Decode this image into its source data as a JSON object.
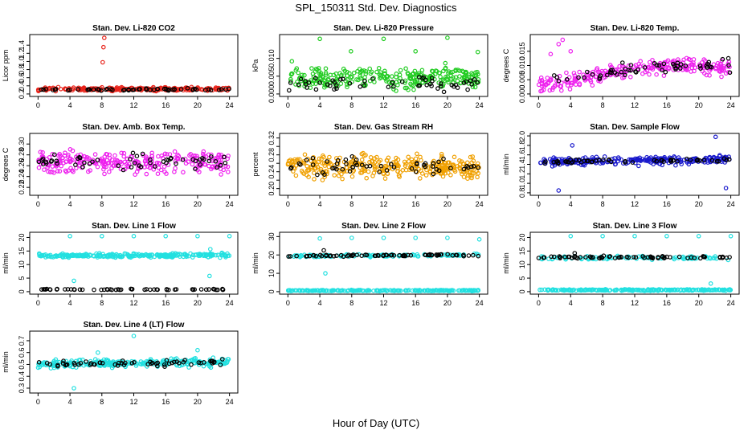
{
  "figure": {
    "title": "SPL_150311  Std. Dev. Diagnostics",
    "xlabel": "Hour of Day (UTC)"
  },
  "chart_data": [
    {
      "type": "scatter",
      "title": "Stan. Dev. Li-820 CO2",
      "ylabel": "Licor ppm",
      "xlim": [
        0,
        24
      ],
      "ylim": [
        0.2,
        1.6
      ],
      "xticks": [
        0,
        4,
        8,
        12,
        16,
        20,
        24
      ],
      "yticks": [
        0.2,
        0.4,
        0.6,
        0.8,
        1.0,
        1.2,
        1.4
      ],
      "ytick_labels": [
        "0.2",
        "0.4",
        "0.6",
        "0.8",
        "1.0",
        "1.2",
        "1.4"
      ],
      "series": [
        {
          "color": "#e8231a",
          "kind": "band",
          "n": 230,
          "center": [
            [
              0,
              0.32
            ],
            [
              24,
              0.32
            ]
          ],
          "spread": 0.06,
          "outliers": [
            [
              8.3,
              1.58
            ],
            [
              8.2,
              1.35
            ],
            [
              8.1,
              0.98
            ]
          ]
        },
        {
          "color": "#000000",
          "kind": "band",
          "n": 55,
          "center": [
            [
              0,
              0.31
            ],
            [
              24,
              0.31
            ]
          ],
          "spread": 0.04
        }
      ]
    },
    {
      "type": "scatter",
      "title": "Stan. Dev. Li-820 Pressure",
      "ylabel": "kPa",
      "xlim": [
        0,
        24
      ],
      "ylim": [
        0,
        0.016
      ],
      "xticks": [
        0,
        4,
        8,
        12,
        16,
        20,
        24
      ],
      "yticks": [
        0,
        0.005,
        0.01
      ],
      "ytick_labels": [
        "0.000",
        "0.005",
        "0.010"
      ],
      "series": [
        {
          "color": "#22cc22",
          "kind": "band",
          "n": 280,
          "center": [
            [
              0,
              0.0045
            ],
            [
              24,
              0.0045
            ]
          ],
          "spread": 0.0045,
          "outliers": [
            [
              4,
              0.0155
            ],
            [
              7.9,
              0.012
            ],
            [
              12,
              0.0155
            ],
            [
              16,
              0.012
            ],
            [
              20,
              0.0158
            ],
            [
              23.8,
              0.0118
            ],
            [
              0.5,
              0.0092
            ]
          ]
        },
        {
          "color": "#000000",
          "kind": "band",
          "n": 55,
          "center": [
            [
              0,
              0.003
            ],
            [
              24,
              0.003
            ]
          ],
          "spread": 0.003
        }
      ]
    },
    {
      "type": "scatter",
      "title": "Stan. Dev. Li-820 Temp.",
      "ylabel": "degrees C",
      "xlim": [
        0,
        24
      ],
      "ylim": [
        0,
        0.02
      ],
      "xticks": [
        0,
        4,
        8,
        12,
        16,
        20,
        24
      ],
      "yticks": [
        0,
        0.005,
        0.01,
        0.015
      ],
      "ytick_labels": [
        "0.000",
        "0.005",
        "0.010",
        "0.015"
      ],
      "series": [
        {
          "color": "#ee22ee",
          "kind": "band",
          "n": 260,
          "center": [
            [
              0,
              0.003
            ],
            [
              5,
              0.005
            ],
            [
              10,
              0.008
            ],
            [
              16,
              0.01
            ],
            [
              24,
              0.009
            ]
          ],
          "spread": 0.004,
          "outliers": [
            [
              3,
              0.019
            ],
            [
              2.5,
              0.0175
            ],
            [
              1.5,
              0.014
            ],
            [
              4,
              0.015
            ]
          ]
        },
        {
          "color": "#000000",
          "kind": "band",
          "n": 55,
          "center": [
            [
              0,
              0.004
            ],
            [
              12,
              0.009
            ],
            [
              24,
              0.01
            ]
          ],
          "spread": 0.003,
          "outliers": [
            [
              23.7,
              0.0125
            ]
          ]
        }
      ]
    },
    {
      "type": "scatter",
      "title": "Stan. Dev. Amb. Box Temp.",
      "ylabel": "degrees C",
      "xlim": [
        0,
        24
      ],
      "ylim": [
        0.21,
        0.315
      ],
      "xticks": [
        0,
        4,
        8,
        12,
        16,
        20,
        24
      ],
      "yticks": [
        0.22,
        0.24,
        0.26,
        0.28,
        0.3
      ],
      "ytick_labels": [
        "0.22",
        "0.24",
        "0.26",
        "0.28",
        "0.30"
      ],
      "series": [
        {
          "color": "#ee22ee",
          "kind": "band",
          "n": 270,
          "center": [
            [
              0,
              0.265
            ],
            [
              24,
              0.268
            ]
          ],
          "spread": 0.03
        },
        {
          "color": "#000000",
          "kind": "band",
          "n": 55,
          "center": [
            [
              0,
              0.268
            ],
            [
              24,
              0.27
            ]
          ],
          "spread": 0.02
        }
      ]
    },
    {
      "type": "scatter",
      "title": "Stan. Dev. Gas Stream RH",
      "ylabel": "percent",
      "xlim": [
        0,
        24
      ],
      "ylim": [
        0.19,
        0.325
      ],
      "xticks": [
        0,
        4,
        8,
        12,
        16,
        20,
        24
      ],
      "yticks": [
        0.2,
        0.22,
        0.24,
        0.26,
        0.28,
        0.3,
        0.32
      ],
      "ytick_labels": [
        "0.20",
        "",
        "0.24",
        "",
        "0.28",
        "",
        "0.32"
      ],
      "series": [
        {
          "color": "#f0a000",
          "kind": "band",
          "n": 330,
          "center": [
            [
              0,
              0.255
            ],
            [
              24,
              0.25
            ]
          ],
          "spread": 0.04
        },
        {
          "color": "#000000",
          "kind": "band",
          "n": 55,
          "center": [
            [
              0,
              0.255
            ],
            [
              24,
              0.252
            ]
          ],
          "spread": 0.03
        }
      ]
    },
    {
      "type": "scatter",
      "title": "Stan. Dev. Sample Flow",
      "ylabel": "ml/min",
      "xlim": [
        0,
        24
      ],
      "ylim": [
        0.8,
        2.0
      ],
      "xticks": [
        0,
        4,
        8,
        12,
        16,
        20,
        24
      ],
      "yticks": [
        0.8,
        1.0,
        1.2,
        1.4,
        1.6,
        1.8,
        2.0
      ],
      "ytick_labels": [
        "0.8",
        "1.0",
        "1.2",
        "1.4",
        "1.6",
        "1.8",
        "2.0"
      ],
      "series": [
        {
          "color": "#1a1acc",
          "kind": "band",
          "n": 270,
          "center": [
            [
              0,
              1.45
            ],
            [
              24,
              1.5
            ]
          ],
          "spread": 0.12,
          "outliers": [
            [
              2.5,
              0.85
            ],
            [
              23.4,
              0.9
            ],
            [
              22.1,
              1.98
            ],
            [
              4.2,
              1.8
            ]
          ]
        },
        {
          "color": "#000000",
          "kind": "band",
          "n": 55,
          "center": [
            [
              0,
              1.45
            ],
            [
              24,
              1.5
            ]
          ],
          "spread": 0.06
        }
      ]
    },
    {
      "type": "scatter",
      "title": "Stan. Dev. Line 1 Flow",
      "ylabel": "ml/min",
      "xlim": [
        0,
        24
      ],
      "ylim": [
        0,
        21
      ],
      "xticks": [
        0,
        4,
        8,
        12,
        16,
        20,
        24
      ],
      "yticks": [
        0,
        5,
        10,
        15,
        20
      ],
      "ytick_labels": [
        "0",
        "5",
        "10",
        "15",
        "20"
      ],
      "series": [
        {
          "color": "#22e0e0",
          "kind": "band",
          "n": 260,
          "center": [
            [
              0,
              13.2
            ],
            [
              24,
              13.5
            ]
          ],
          "spread": 1.0,
          "outliers": [
            [
              4,
              20.5
            ],
            [
              8,
              20.5
            ],
            [
              12,
              20.5
            ],
            [
              16,
              20.5
            ],
            [
              20,
              20.5
            ],
            [
              24,
              20.5
            ],
            [
              4.5,
              4
            ],
            [
              21.5,
              5.8
            ],
            [
              21.6,
              15.7
            ]
          ]
        },
        {
          "color": "#000000",
          "kind": "band",
          "n": 55,
          "center": [
            [
              0,
              0.8
            ],
            [
              24,
              0.8
            ]
          ],
          "spread": 0.3
        }
      ]
    },
    {
      "type": "scatter",
      "title": "Stan. Dev. Line 2 Flow",
      "ylabel": "ml/min",
      "xlim": [
        0,
        24
      ],
      "ylim": [
        0,
        31
      ],
      "xticks": [
        0,
        4,
        8,
        12,
        16,
        20,
        24
      ],
      "yticks": [
        0,
        10,
        20,
        30
      ],
      "ytick_labels": [
        "0",
        "10",
        "20",
        "30"
      ],
      "series": [
        {
          "color": "#22e0e0",
          "kind": "band",
          "n": 220,
          "center": [
            [
              0,
              0.6
            ],
            [
              24,
              0.6
            ]
          ],
          "spread": 0.4,
          "outliers": [
            [
              4,
              29
            ],
            [
              8,
              29.3
            ],
            [
              12,
              29.3
            ],
            [
              16,
              29.3
            ],
            [
              20,
              29.3
            ],
            [
              24,
              28.5
            ],
            [
              4.7,
              10
            ]
          ]
        },
        {
          "color": "#22e0e0",
          "kind": "band",
          "n": 120,
          "center": [
            [
              0,
              19.5
            ],
            [
              24,
              20
            ]
          ],
          "spread": 1.0
        },
        {
          "color": "#000000",
          "kind": "band",
          "n": 70,
          "center": [
            [
              0,
              19.5
            ],
            [
              24,
              20
            ]
          ],
          "spread": 0.8,
          "outliers": [
            [
              4.5,
              22.5
            ]
          ]
        }
      ]
    },
    {
      "type": "scatter",
      "title": "Stan. Dev. Line 3 Flow",
      "ylabel": "ml/min",
      "xlim": [
        0,
        24
      ],
      "ylim": [
        0,
        21
      ],
      "xticks": [
        0,
        4,
        8,
        12,
        16,
        20,
        24
      ],
      "yticks": [
        0,
        5,
        10,
        15,
        20
      ],
      "ytick_labels": [
        "0",
        "5",
        "10",
        "15",
        "20"
      ],
      "series": [
        {
          "color": "#22e0e0",
          "kind": "band",
          "n": 220,
          "center": [
            [
              0,
              0.6
            ],
            [
              24,
              0.6
            ]
          ],
          "spread": 0.4,
          "outliers": [
            [
              4,
              20.5
            ],
            [
              8,
              20.5
            ],
            [
              12,
              20.5
            ],
            [
              16,
              20.5
            ],
            [
              20,
              20.5
            ],
            [
              24,
              20.5
            ],
            [
              21.5,
              3
            ]
          ]
        },
        {
          "color": "#22e0e0",
          "kind": "band",
          "n": 100,
          "center": [
            [
              0,
              12.5
            ],
            [
              24,
              12.5
            ]
          ],
          "spread": 1.0
        },
        {
          "color": "#000000",
          "kind": "band",
          "n": 70,
          "center": [
            [
              0,
              12.7
            ],
            [
              24,
              12.7
            ]
          ],
          "spread": 0.6,
          "outliers": [
            [
              4.5,
              14.2
            ]
          ]
        }
      ]
    },
    {
      "type": "scatter",
      "title": "Stan. Dev. Line 4 (LT) Flow",
      "ylabel": "ml/min",
      "xlim": [
        0,
        24
      ],
      "ylim": [
        0.28,
        0.76
      ],
      "xticks": [
        0,
        4,
        8,
        12,
        16,
        20,
        24
      ],
      "yticks": [
        0.3,
        0.4,
        0.5,
        0.6,
        0.7
      ],
      "ytick_labels": [
        "0.3",
        "0.4",
        "0.5",
        "0.6",
        "0.7"
      ],
      "series": [
        {
          "color": "#22e0e0",
          "kind": "band",
          "n": 260,
          "center": [
            [
              0,
              0.5
            ],
            [
              24,
              0.52
            ]
          ],
          "spread": 0.05,
          "outliers": [
            [
              4.5,
              0.3
            ],
            [
              12,
              0.74
            ],
            [
              7.5,
              0.6
            ],
            [
              20,
              0.62
            ]
          ]
        },
        {
          "color": "#000000",
          "kind": "band",
          "n": 60,
          "center": [
            [
              0,
              0.5
            ],
            [
              24,
              0.52
            ]
          ],
          "spread": 0.035
        }
      ]
    }
  ]
}
